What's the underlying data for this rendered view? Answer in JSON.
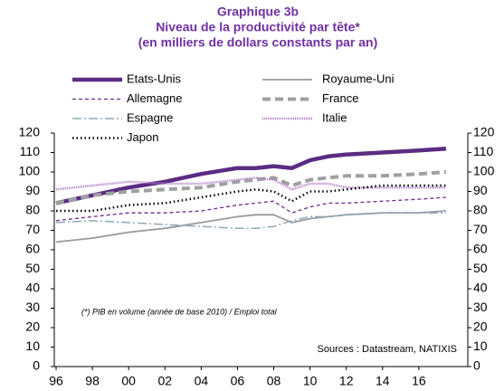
{
  "chart_data": {
    "type": "line",
    "title": "Graphique 3b",
    "subtitle": [
      "Niveau de la productivité par tête*",
      "(en milliers de dollars constants par an)"
    ],
    "annotations": [
      "(*) PIB en volume (année de base 2010) / Emploi total",
      "Sources : Datastream, NATIXIS"
    ],
    "x": [
      1996,
      1998,
      2000,
      2002,
      2004,
      2006,
      2007,
      2008,
      2009,
      2010,
      2011,
      2012,
      2014,
      2016,
      2017.5
    ],
    "series": [
      {
        "name": "Etats-Unis",
        "color": "#5b2c83",
        "values": [
          84,
          88,
          92,
          95,
          99,
          102,
          102,
          103,
          102,
          106,
          108,
          109,
          110,
          111,
          112
        ]
      },
      {
        "name": "Royaume-Uni",
        "color": "#9a9a9a",
        "values": [
          64,
          66,
          69,
          71,
          74,
          77,
          78,
          78,
          74,
          76,
          77,
          78,
          79,
          79,
          80
        ]
      },
      {
        "name": "Allemagne",
        "color": "#6a2c8c",
        "values": [
          75,
          77,
          79,
          79,
          80,
          83,
          84,
          85,
          79,
          82,
          84,
          84,
          85,
          86,
          87
        ]
      },
      {
        "name": "France",
        "color": "#a0a0a0",
        "values": [
          84,
          88,
          90,
          91,
          92,
          95,
          96,
          97,
          93,
          96,
          97,
          98,
          98,
          99,
          100
        ]
      },
      {
        "name": "Espagne",
        "color": "#8fa9b8",
        "values": [
          74,
          75,
          74,
          73,
          72,
          71,
          71,
          72,
          75,
          77,
          77,
          78,
          79,
          79,
          79
        ]
      },
      {
        "name": "Italie",
        "color": "#b07cc6",
        "values": [
          91,
          93,
          95,
          94,
          94,
          96,
          97,
          96,
          91,
          94,
          94,
          92,
          92,
          92,
          92
        ]
      },
      {
        "name": "Japon",
        "color": "#000000",
        "values": [
          80,
          80,
          83,
          84,
          87,
          90,
          91,
          90,
          85,
          90,
          90,
          91,
          93,
          93,
          93
        ]
      }
    ],
    "xlim": [
      1995.9,
      2018.7
    ],
    "xticks": [
      {
        "value": 1996,
        "label": "96"
      },
      {
        "value": 1998,
        "label": "98"
      },
      {
        "value": 2000,
        "label": "00"
      },
      {
        "value": 2002,
        "label": "02"
      },
      {
        "value": 2004,
        "label": "04"
      },
      {
        "value": 2006,
        "label": "06"
      },
      {
        "value": 2008,
        "label": "08"
      },
      {
        "value": 2010,
        "label": "10"
      },
      {
        "value": 2012,
        "label": "12"
      },
      {
        "value": 2014,
        "label": "14"
      },
      {
        "value": 2016,
        "label": "16"
      }
    ],
    "ylim": [
      0,
      120
    ],
    "yticks": [
      0,
      10,
      20,
      30,
      40,
      50,
      60,
      70,
      80,
      90,
      100,
      110,
      120
    ],
    "grid": false
  }
}
